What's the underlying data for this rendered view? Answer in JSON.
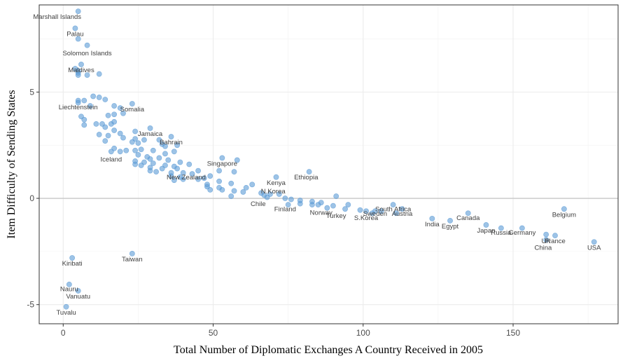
{
  "chart_data": {
    "type": "scatter",
    "title": "",
    "xlabel": "Total Number of Diplomatic Exchanges A Country Received in 2005",
    "ylabel": "Item Difficulty of Sending States",
    "xlim": [
      -8,
      185
    ],
    "ylim": [
      -5.9,
      9.1
    ],
    "x_ticks": [
      0,
      50,
      100,
      150
    ],
    "y_ticks": [
      -5,
      0,
      5
    ],
    "grid": true,
    "reference_line_y": 0,
    "point_color": "#5b9bd5",
    "points": [
      {
        "x": 5,
        "y": 8.8
      },
      {
        "x": 4,
        "y": 8.0
      },
      {
        "x": 5,
        "y": 7.5
      },
      {
        "x": 8,
        "y": 7.2
      },
      {
        "x": 6,
        "y": 6.3
      },
      {
        "x": 4,
        "y": 6.1
      },
      {
        "x": 5,
        "y": 6.0
      },
      {
        "x": 5,
        "y": 5.9
      },
      {
        "x": 5,
        "y": 5.8
      },
      {
        "x": 8,
        "y": 5.8
      },
      {
        "x": 12,
        "y": 5.85
      },
      {
        "x": 10,
        "y": 4.8
      },
      {
        "x": 12,
        "y": 4.75
      },
      {
        "x": 14,
        "y": 4.65
      },
      {
        "x": 23,
        "y": 4.45
      },
      {
        "x": 5,
        "y": 4.6
      },
      {
        "x": 7,
        "y": 4.6
      },
      {
        "x": 5,
        "y": 4.5
      },
      {
        "x": 9,
        "y": 4.35
      },
      {
        "x": 17,
        "y": 4.35
      },
      {
        "x": 19,
        "y": 4.25
      },
      {
        "x": 20,
        "y": 4.0
      },
      {
        "x": 17,
        "y": 3.95
      },
      {
        "x": 15,
        "y": 3.9
      },
      {
        "x": 6,
        "y": 3.85
      },
      {
        "x": 7,
        "y": 3.7
      },
      {
        "x": 17,
        "y": 3.6
      },
      {
        "x": 16,
        "y": 3.5
      },
      {
        "x": 11,
        "y": 3.5
      },
      {
        "x": 13,
        "y": 3.5
      },
      {
        "x": 7,
        "y": 3.45
      },
      {
        "x": 14,
        "y": 3.35
      },
      {
        "x": 29,
        "y": 3.3
      },
      {
        "x": 17,
        "y": 3.2
      },
      {
        "x": 24,
        "y": 3.15
      },
      {
        "x": 19,
        "y": 3.05
      },
      {
        "x": 12,
        "y": 3.0
      },
      {
        "x": 15,
        "y": 2.95
      },
      {
        "x": 20,
        "y": 2.85
      },
      {
        "x": 36,
        "y": 2.9
      },
      {
        "x": 24,
        "y": 2.8
      },
      {
        "x": 27,
        "y": 2.75
      },
      {
        "x": 32,
        "y": 2.75
      },
      {
        "x": 14,
        "y": 2.7
      },
      {
        "x": 23,
        "y": 2.65
      },
      {
        "x": 25,
        "y": 2.6
      },
      {
        "x": 33,
        "y": 2.55
      },
      {
        "x": 38,
        "y": 2.5
      },
      {
        "x": 34,
        "y": 2.45
      },
      {
        "x": 17,
        "y": 2.35
      },
      {
        "x": 26,
        "y": 2.3
      },
      {
        "x": 30,
        "y": 2.25
      },
      {
        "x": 24,
        "y": 2.25
      },
      {
        "x": 21,
        "y": 2.25
      },
      {
        "x": 19,
        "y": 2.2
      },
      {
        "x": 16,
        "y": 2.2
      },
      {
        "x": 37,
        "y": 2.2
      },
      {
        "x": 34,
        "y": 2.1
      },
      {
        "x": 25,
        "y": 2.05
      },
      {
        "x": 28,
        "y": 1.95
      },
      {
        "x": 32,
        "y": 1.9
      },
      {
        "x": 29,
        "y": 1.85
      },
      {
        "x": 35,
        "y": 1.8
      },
      {
        "x": 24,
        "y": 1.75
      },
      {
        "x": 27,
        "y": 1.7
      },
      {
        "x": 30,
        "y": 1.65
      },
      {
        "x": 39,
        "y": 1.7
      },
      {
        "x": 42,
        "y": 1.6
      },
      {
        "x": 24,
        "y": 1.6
      },
      {
        "x": 26,
        "y": 1.55
      },
      {
        "x": 34,
        "y": 1.55
      },
      {
        "x": 37,
        "y": 1.5
      },
      {
        "x": 29,
        "y": 1.45
      },
      {
        "x": 38,
        "y": 1.4
      },
      {
        "x": 33,
        "y": 1.4
      },
      {
        "x": 29,
        "y": 1.3
      },
      {
        "x": 45,
        "y": 1.3
      },
      {
        "x": 52,
        "y": 1.3
      },
      {
        "x": 57,
        "y": 1.25
      },
      {
        "x": 31,
        "y": 1.25
      },
      {
        "x": 36,
        "y": 1.2
      },
      {
        "x": 40,
        "y": 1.2
      },
      {
        "x": 43,
        "y": 1.15
      },
      {
        "x": 49,
        "y": 1.05
      },
      {
        "x": 36,
        "y": 1.05
      },
      {
        "x": 39,
        "y": 1.0
      },
      {
        "x": 47,
        "y": 0.95
      },
      {
        "x": 45,
        "y": 0.9
      },
      {
        "x": 40,
        "y": 0.9
      },
      {
        "x": 37,
        "y": 0.85
      },
      {
        "x": 52,
        "y": 0.8
      },
      {
        "x": 56,
        "y": 0.7
      },
      {
        "x": 48,
        "y": 0.65
      },
      {
        "x": 63,
        "y": 0.65
      },
      {
        "x": 48,
        "y": 0.55
      },
      {
        "x": 61,
        "y": 0.5
      },
      {
        "x": 52,
        "y": 0.5
      },
      {
        "x": 49,
        "y": 0.4
      },
      {
        "x": 53,
        "y": 0.4
      },
      {
        "x": 57,
        "y": 0.35
      },
      {
        "x": 60,
        "y": 0.3
      },
      {
        "x": 66,
        "y": 0.25
      },
      {
        "x": 69,
        "y": 0.2
      },
      {
        "x": 72,
        "y": 0.2
      },
      {
        "x": 67,
        "y": 0.15
      },
      {
        "x": 56,
        "y": 0.1
      },
      {
        "x": 68,
        "y": 0.05
      },
      {
        "x": 74,
        "y": 0.0
      },
      {
        "x": 76,
        "y": -0.05
      },
      {
        "x": 79,
        "y": -0.1
      },
      {
        "x": 83,
        "y": -0.15
      },
      {
        "x": 86,
        "y": -0.2
      },
      {
        "x": 79,
        "y": -0.25
      },
      {
        "x": 75,
        "y": -0.3
      },
      {
        "x": 83,
        "y": -0.3
      },
      {
        "x": 85,
        "y": -0.3
      },
      {
        "x": 90,
        "y": -0.35
      },
      {
        "x": 95,
        "y": -0.3
      },
      {
        "x": 88,
        "y": -0.45
      },
      {
        "x": 94,
        "y": -0.5
      },
      {
        "x": 99,
        "y": -0.55
      },
      {
        "x": 101,
        "y": -0.6
      },
      {
        "x": 104,
        "y": -0.6
      },
      {
        "x": 106,
        "y": -0.6
      },
      {
        "x": 103,
        "y": -0.7
      },
      {
        "x": 110,
        "y": -0.3
      },
      {
        "x": 111,
        "y": -0.7
      },
      {
        "x": 113,
        "y": -0.5
      },
      {
        "x": 91,
        "y": 0.1
      },
      {
        "x": 82,
        "y": 1.25
      },
      {
        "x": 71,
        "y": 1.0
      },
      {
        "x": 58,
        "y": 1.8
      },
      {
        "x": 53,
        "y": 1.9
      },
      {
        "x": 123,
        "y": -0.95
      },
      {
        "x": 129,
        "y": -1.05
      },
      {
        "x": 135,
        "y": -0.7
      },
      {
        "x": 141,
        "y": -1.25
      },
      {
        "x": 146,
        "y": -1.4
      },
      {
        "x": 153,
        "y": -1.4
      },
      {
        "x": 161,
        "y": -1.7
      },
      {
        "x": 161,
        "y": -1.95
      },
      {
        "x": 164,
        "y": -1.75
      },
      {
        "x": 167,
        "y": -0.5
      },
      {
        "x": 177,
        "y": -2.05
      },
      {
        "x": 23,
        "y": -2.6
      },
      {
        "x": 3,
        "y": -2.8
      },
      {
        "x": 2,
        "y": -4.05
      },
      {
        "x": 5,
        "y": -4.35
      },
      {
        "x": 1,
        "y": -5.1
      }
    ],
    "annotations": [
      {
        "text": "Marshall Islands",
        "x": -2,
        "y": 8.55
      },
      {
        "text": "Palau",
        "x": 4,
        "y": 7.75
      },
      {
        "text": "Solomon Islands",
        "x": 8,
        "y": 6.85
      },
      {
        "text": "Maldives",
        "x": 6,
        "y": 6.05
      },
      {
        "text": "Liechtenstein",
        "x": 5,
        "y": 4.3
      },
      {
        "text": "Somalia",
        "x": 23,
        "y": 4.2
      },
      {
        "text": "Jamaica",
        "x": 29,
        "y": 3.05
      },
      {
        "text": "Bahrain",
        "x": 36,
        "y": 2.65
      },
      {
        "text": "Iceland",
        "x": 16,
        "y": 1.85
      },
      {
        "text": "Singapore",
        "x": 53,
        "y": 1.65
      },
      {
        "text": "New Zealand",
        "x": 41,
        "y": 1.0
      },
      {
        "text": "Ethiopia",
        "x": 81,
        "y": 1.0
      },
      {
        "text": "Kenya",
        "x": 71,
        "y": 0.75
      },
      {
        "text": "N.Korea",
        "x": 70,
        "y": 0.35
      },
      {
        "text": "Chile",
        "x": 65,
        "y": -0.25
      },
      {
        "text": "Finland",
        "x": 74,
        "y": -0.5
      },
      {
        "text": "Norway",
        "x": 86,
        "y": -0.65
      },
      {
        "text": "Turkey",
        "x": 91,
        "y": -0.8
      },
      {
        "text": "S.Korea",
        "x": 101,
        "y": -0.9
      },
      {
        "text": "Sweden",
        "x": 104,
        "y": -0.7
      },
      {
        "text": "South Africa",
        "x": 110,
        "y": -0.5
      },
      {
        "text": "Austria",
        "x": 113,
        "y": -0.7
      },
      {
        "text": "India",
        "x": 123,
        "y": -1.2
      },
      {
        "text": "Egypt",
        "x": 129,
        "y": -1.3
      },
      {
        "text": "Canada",
        "x": 135,
        "y": -0.9
      },
      {
        "text": "Japan",
        "x": 141,
        "y": -1.5
      },
      {
        "text": "Russia",
        "x": 146,
        "y": -1.6
      },
      {
        "text": "Germany",
        "x": 153,
        "y": -1.6
      },
      {
        "text": "France",
        "x": 164,
        "y": -2.0
      },
      {
        "text": "UK",
        "x": 161,
        "y": -2.0
      },
      {
        "text": "China",
        "x": 160,
        "y": -2.3
      },
      {
        "text": "Belgium",
        "x": 167,
        "y": -0.75
      },
      {
        "text": "USA",
        "x": 177,
        "y": -2.3
      },
      {
        "text": "Taiwan",
        "x": 23,
        "y": -2.85
      },
      {
        "text": "Kiribati",
        "x": 3,
        "y": -3.05
      },
      {
        "text": "Nauru",
        "x": 2,
        "y": -4.25
      },
      {
        "text": "Vanuatu",
        "x": 5,
        "y": -4.6
      },
      {
        "text": "Tuvalu",
        "x": 1,
        "y": -5.35
      }
    ]
  }
}
